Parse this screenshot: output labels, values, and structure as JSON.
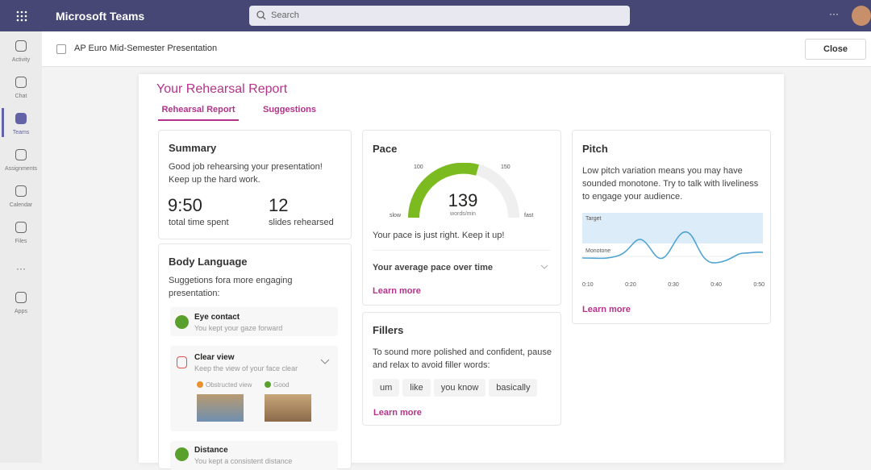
{
  "header": {
    "app_title": "Microsoft Teams",
    "search_placeholder": "Search",
    "document_title": "AP Euro Mid-Semester Presentation",
    "close_button": "Close"
  },
  "sidebar": {
    "items": [
      "Activity",
      "Chat",
      "Teams",
      "Assignments",
      "Calendar",
      "Files",
      "Apps"
    ]
  },
  "report": {
    "title": "Your Rehearsal Report",
    "tabs": [
      "Rehearsal Report",
      "Suggestions"
    ]
  },
  "summary": {
    "title": "Summary",
    "text": "Good job rehearsing your presentation! Keep up the hard work.",
    "time_value": "9:50",
    "time_label": "total time spent",
    "slides_value": 12,
    "slides_label": "slides rehearsed"
  },
  "body_language": {
    "title": "Body Language",
    "text": "Suggetions fora more engaging presentation:",
    "items": [
      {
        "title": "Eye contact",
        "text": "You kept your gaze forward"
      },
      {
        "title": "Clear view",
        "text": "Keep the view of your face clear",
        "bad_label": "Obstructed view",
        "good_label": "Good"
      },
      {
        "title": "Distance",
        "text": "You kept a consistent distance"
      }
    ]
  },
  "pace": {
    "title": "Pace",
    "gauge_value": 139,
    "gauge_unit": "words/min",
    "gauge_low": 100,
    "gauge_high": 150,
    "slow_label": "slow",
    "fast_label": "fast",
    "message": "Your pace is just right. Keep it up!",
    "average_label": "Your average pace over time",
    "link": "Learn more"
  },
  "fillers": {
    "title": "Fillers",
    "text": "To sound more polished and confident, pause and relax to avoid filler words:",
    "words": [
      "um",
      "like",
      "you know",
      "basically"
    ],
    "link": "Learn more"
  },
  "pitch": {
    "title": "Pitch",
    "text": "Low pitch variation means you may have sounded monotone. Try to talk with liveliness to engage your audience.",
    "target_label": "Target",
    "monotone_label": "Monotone",
    "x_labels": [
      "0:10",
      "0:20",
      "0:30",
      "0:40",
      "0:50"
    ],
    "link": "Learn more"
  }
}
